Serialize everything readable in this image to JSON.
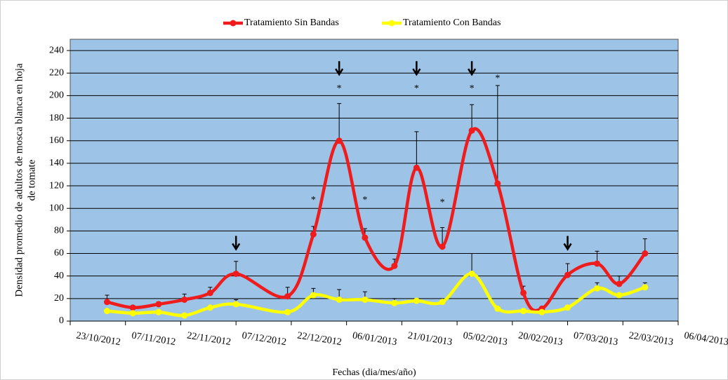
{
  "chart_data": {
    "type": "line",
    "ylabel": [
      "Densidad promedio de adultos de mosca blanca en hoja",
      "de tomate"
    ],
    "xlabel": "Fechas (dia/mes/año)",
    "x": [
      "02/11/2012",
      "09/11/2012",
      "16/11/2012",
      "23/11/2012",
      "30/11/2012",
      "07/12/2012",
      "21/12/2012",
      "28/12/2012",
      "04/01/2013",
      "11/01/2013",
      "19/01/2013",
      "25/01/2013",
      "01/02/2013",
      "09/02/2013",
      "16/02/2013",
      "23/02/2013",
      "28/02/2013",
      "07/03/2013",
      "15/03/2013",
      "21/03/2013",
      "28/03/2013"
    ],
    "series": [
      {
        "name": "Tratamiento Sin Bandas",
        "color": "#ee1c1c",
        "values": [
          17,
          12,
          15,
          19,
          25,
          42,
          22,
          77,
          160,
          74,
          49,
          136,
          66,
          169,
          122,
          25,
          11,
          41,
          51,
          33,
          60
        ],
        "errors": [
          6,
          1,
          2,
          5,
          5,
          11,
          8,
          7,
          33,
          8,
          6,
          32,
          17,
          23,
          87,
          6,
          1,
          10,
          11,
          7,
          13
        ]
      },
      {
        "name": "Tratamiento Con Bandas",
        "color": "#ffff00",
        "values": [
          9,
          7,
          8,
          5,
          12,
          15,
          8,
          23,
          19,
          19,
          16,
          18,
          17,
          42,
          11,
          9,
          8,
          12,
          29,
          23,
          30
        ],
        "errors": [
          2,
          1,
          1,
          1,
          2,
          4,
          1,
          6,
          9,
          7,
          4,
          1,
          1,
          18,
          2,
          1,
          1,
          1,
          5,
          1,
          4
        ]
      }
    ],
    "arrows": [
      {
        "x": "07/12/2012",
        "y": 70
      },
      {
        "x": "04/01/2013",
        "y": 225
      },
      {
        "x": "25/01/2013",
        "y": 225
      },
      {
        "x": "09/02/2013",
        "y": 225
      },
      {
        "x": "07/03/2013",
        "y": 70
      }
    ],
    "annotations": [
      {
        "text": "*",
        "x": "28/12/2012",
        "y": 107
      },
      {
        "text": "*",
        "x": "04/01/2013",
        "y": 206
      },
      {
        "text": "*",
        "x": "11/01/2013",
        "y": 107
      },
      {
        "text": "*",
        "x": "25/01/2013",
        "y": 206
      },
      {
        "text": "*",
        "x": "01/02/2013",
        "y": 105
      },
      {
        "text": "*",
        "x": "09/02/2013",
        "y": 206
      },
      {
        "text": "*",
        "x": "16/02/2013",
        "y": 215
      }
    ],
    "xlim": [
      "23/10/2012",
      "06/04/2013"
    ],
    "xticks": [
      "23/10/2012",
      "07/11/2012",
      "22/11/2012",
      "07/12/2012",
      "22/12/2012",
      "06/01/2013",
      "21/01/2013",
      "05/02/2013",
      "20/02/2013",
      "07/03/2013",
      "22/03/2013",
      "06/04/2013"
    ],
    "ylim": [
      0,
      250
    ],
    "yticks": [
      0,
      20,
      40,
      60,
      80,
      100,
      120,
      140,
      160,
      180,
      200,
      220,
      240
    ],
    "grid": true,
    "plot_color": "#9dc3e6",
    "smooth": true,
    "legend": "top"
  }
}
